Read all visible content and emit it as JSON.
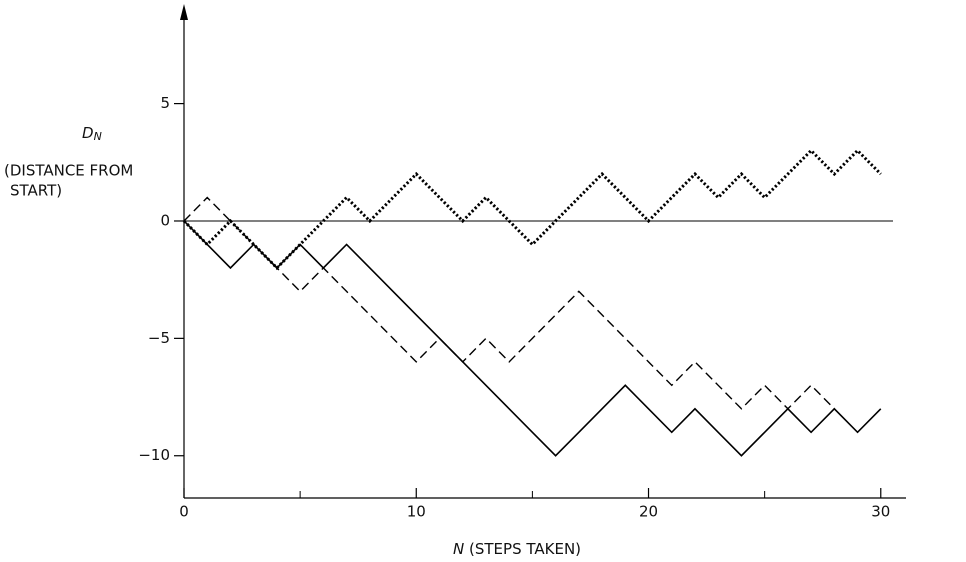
{
  "chart_data": {
    "type": "line",
    "y_symbol": "D",
    "y_symbol_sub": "N",
    "ylabel_lines": [
      "(DISTANCE FROM",
      "START)"
    ],
    "x_symbol": "N",
    "xlabel": "(STEPS TAKEN)",
    "x": [
      0,
      1,
      2,
      3,
      4,
      5,
      6,
      7,
      8,
      9,
      10,
      11,
      12,
      13,
      14,
      15,
      16,
      17,
      18,
      19,
      20,
      21,
      22,
      23,
      24,
      25,
      26,
      27,
      28,
      29,
      30
    ],
    "series": [
      {
        "color": "#000000",
        "dash": "solid",
        "values": [
          0,
          -1,
          -2,
          -1,
          -2,
          -1,
          -2,
          -1,
          -2,
          -3,
          -4,
          -5,
          -6,
          -7,
          -8,
          -9,
          -10,
          -9,
          -8,
          -7,
          -8,
          -9,
          -8,
          -9,
          -10,
          -9,
          -8,
          -9,
          -8,
          -9,
          -8
        ]
      },
      {
        "color": "#000000",
        "dash": "dashed",
        "values": [
          0,
          1,
          0,
          -1,
          -2,
          -3,
          -2,
          -3,
          -4,
          -5,
          -6,
          -5,
          -6,
          -5,
          -6,
          -5,
          -4,
          -3,
          -4,
          -5,
          -6,
          -7,
          -6,
          -7,
          -8,
          -7,
          -8,
          -7,
          -8,
          null,
          null
        ]
      },
      {
        "color": "#000000",
        "dash": "dotted",
        "values": [
          0,
          -1,
          0,
          -1,
          -2,
          -1,
          0,
          1,
          0,
          1,
          2,
          1,
          0,
          1,
          0,
          -1,
          0,
          1,
          2,
          1,
          0,
          1,
          2,
          1,
          2,
          1,
          2,
          3,
          2,
          3,
          2
        ]
      }
    ],
    "xlim": [
      0,
      31
    ],
    "ylim": [
      -11.8,
      9.2
    ],
    "xticks": [
      0,
      10,
      20,
      30
    ],
    "x_minor_ticks": [
      5,
      15,
      25
    ],
    "yticks": [
      {
        "value": -10,
        "label": "−10"
      },
      {
        "value": -5,
        "label": "−5"
      },
      0,
      5
    ],
    "zero_line": true,
    "grid": false
  }
}
